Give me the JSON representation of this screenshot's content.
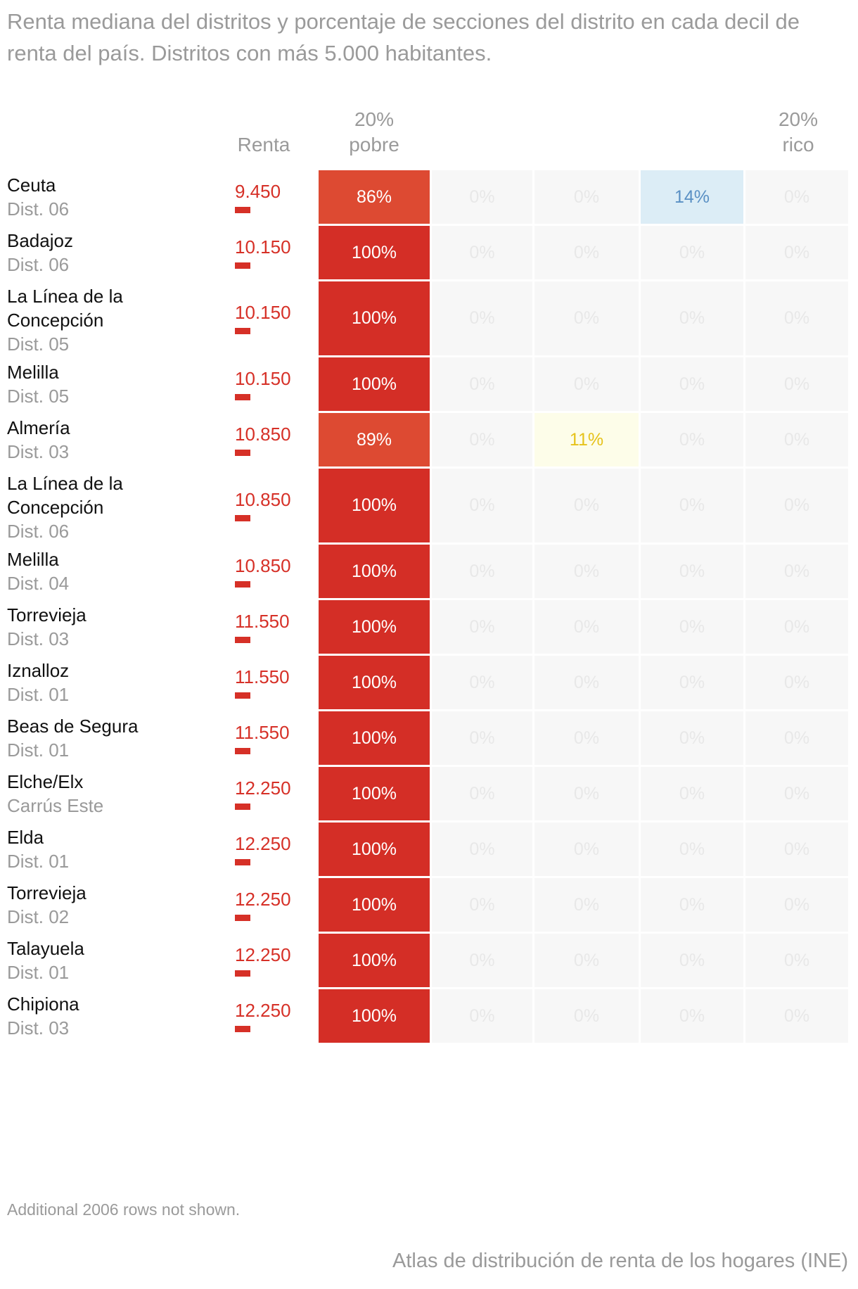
{
  "title": "Renta mediana del distritos y porcentaje de secciones del distrito en cada decil de renta del país. Distritos con más 5.000 habitantes.",
  "headers": {
    "renta": "Renta",
    "pobre": "20%\npobre",
    "rico": "20%\nrico"
  },
  "note": "Additional 2006 rows not shown.",
  "source": "Atlas de distribución de renta de los hogares (INE)",
  "colors": {
    "renta": "#d63027",
    "empty_cell": "#f7f7f7",
    "empty_text": "#e8e8e8",
    "strong_red": "#d42e26",
    "medium_red": "#dd4a32",
    "yellow_bg": "#fdfde9",
    "yellow_text": "#e6c21a",
    "blue_bg": "#dcedf6",
    "blue_text": "#5a90c4"
  },
  "chart_data": {
    "type": "table",
    "title": "Renta mediana del distritos y porcentaje de secciones del distrito en cada decil de renta del país. Distritos con más 5.000 habitantes.",
    "columns": [
      "Renta",
      "20% pobre",
      "",
      "",
      "",
      "20% rico"
    ],
    "rows": [
      {
        "name": "Ceuta",
        "district": "Dist. 06",
        "renta": "9.450",
        "renta_value": 9450,
        "pct": [
          "86%",
          "0%",
          "0%",
          "14%",
          "0%"
        ]
      },
      {
        "name": "Badajoz",
        "district": "Dist. 06",
        "renta": "10.150",
        "renta_value": 10150,
        "pct": [
          "100%",
          "0%",
          "0%",
          "0%",
          "0%"
        ]
      },
      {
        "name": "La Línea de la Concepción",
        "district": "Dist. 05",
        "renta": "10.150",
        "renta_value": 10150,
        "pct": [
          "100%",
          "0%",
          "0%",
          "0%",
          "0%"
        ]
      },
      {
        "name": "Melilla",
        "district": "Dist. 05",
        "renta": "10.150",
        "renta_value": 10150,
        "pct": [
          "100%",
          "0%",
          "0%",
          "0%",
          "0%"
        ]
      },
      {
        "name": "Almería",
        "district": "Dist. 03",
        "renta": "10.850",
        "renta_value": 10850,
        "pct": [
          "89%",
          "0%",
          "11%",
          "0%",
          "0%"
        ]
      },
      {
        "name": "La Línea de la Concepción",
        "district": "Dist. 06",
        "renta": "10.850",
        "renta_value": 10850,
        "pct": [
          "100%",
          "0%",
          "0%",
          "0%",
          "0%"
        ]
      },
      {
        "name": "Melilla",
        "district": "Dist. 04",
        "renta": "10.850",
        "renta_value": 10850,
        "pct": [
          "100%",
          "0%",
          "0%",
          "0%",
          "0%"
        ]
      },
      {
        "name": "Torrevieja",
        "district": "Dist. 03",
        "renta": "11.550",
        "renta_value": 11550,
        "pct": [
          "100%",
          "0%",
          "0%",
          "0%",
          "0%"
        ]
      },
      {
        "name": "Iznalloz",
        "district": "Dist. 01",
        "renta": "11.550",
        "renta_value": 11550,
        "pct": [
          "100%",
          "0%",
          "0%",
          "0%",
          "0%"
        ]
      },
      {
        "name": "Beas de Segura",
        "district": "Dist. 01",
        "renta": "11.550",
        "renta_value": 11550,
        "pct": [
          "100%",
          "0%",
          "0%",
          "0%",
          "0%"
        ]
      },
      {
        "name": "Elche/Elx",
        "district": "Carrús Este",
        "renta": "12.250",
        "renta_value": 12250,
        "pct": [
          "100%",
          "0%",
          "0%",
          "0%",
          "0%"
        ]
      },
      {
        "name": "Elda",
        "district": "Dist. 01",
        "renta": "12.250",
        "renta_value": 12250,
        "pct": [
          "100%",
          "0%",
          "0%",
          "0%",
          "0%"
        ]
      },
      {
        "name": "Torrevieja",
        "district": "Dist. 02",
        "renta": "12.250",
        "renta_value": 12250,
        "pct": [
          "100%",
          "0%",
          "0%",
          "0%",
          "0%"
        ]
      },
      {
        "name": "Talayuela",
        "district": "Dist. 01",
        "renta": "12.250",
        "renta_value": 12250,
        "pct": [
          "100%",
          "0%",
          "0%",
          "0%",
          "0%"
        ]
      },
      {
        "name": "Chipiona",
        "district": "Dist. 03",
        "renta": "12.250",
        "renta_value": 12250,
        "pct": [
          "100%",
          "0%",
          "0%",
          "0%",
          "0%"
        ]
      }
    ]
  }
}
